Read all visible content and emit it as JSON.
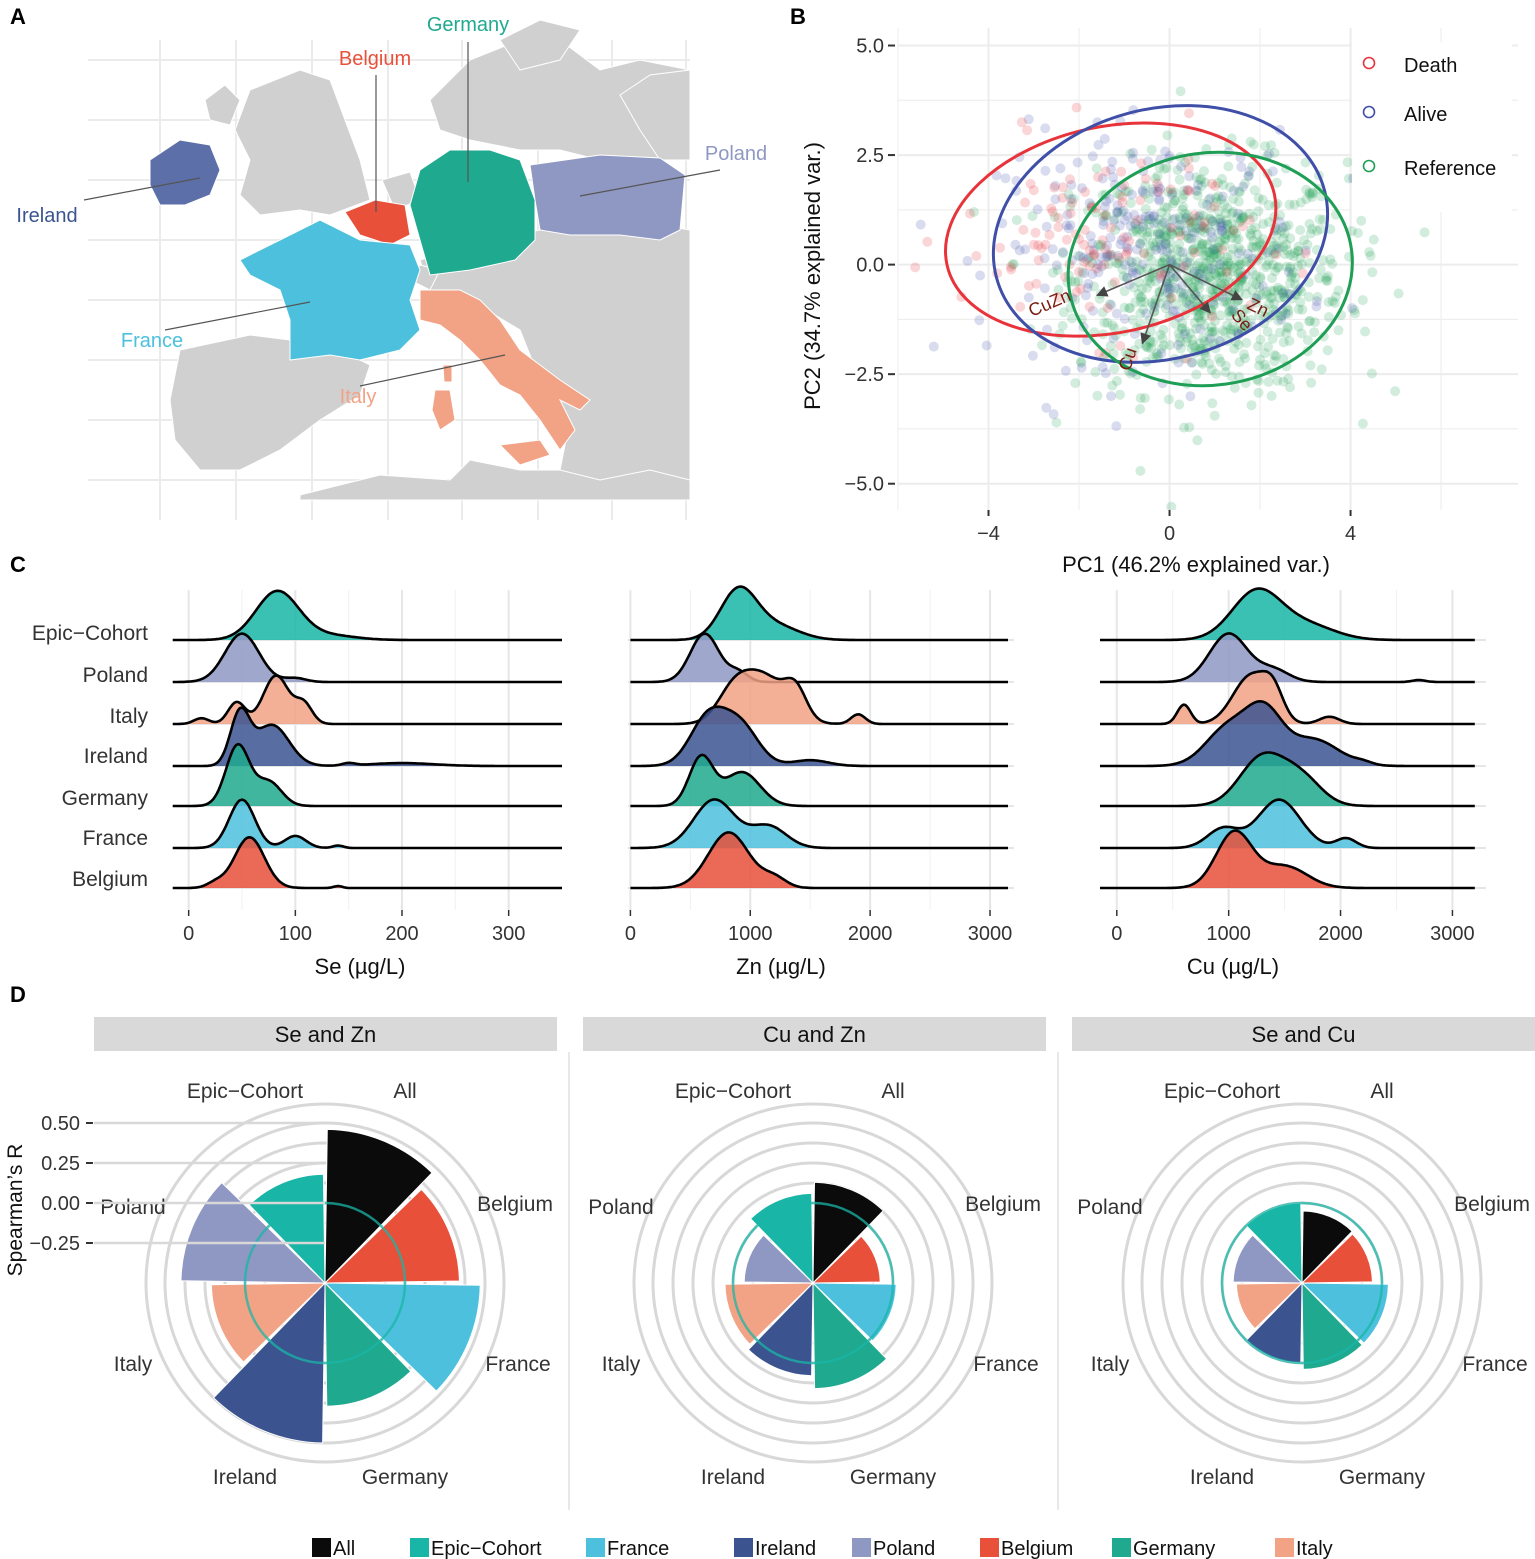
{
  "colors": {
    "All": "#0b0b0b",
    "Epic-Cohort": "#19b5a7",
    "France": "#4cc0dd",
    "Ireland": "#3b5490",
    "Poland": "#8f98c3",
    "Belgium": "#e8503a",
    "Germany": "#1fa98e",
    "Italy": "#f2a285",
    "Death": "#e8333b",
    "Alive": "#3f4fa8",
    "Reference": "#1f9e55",
    "arrow": "#7a1d12",
    "map_land": "#d0d0d0"
  },
  "panel_labels": [
    "A",
    "B",
    "C",
    "D"
  ],
  "map": {
    "labels": [
      "Germany",
      "Belgium",
      "Poland",
      "Ireland",
      "France",
      "Italy"
    ],
    "icon": "europe-map-icon"
  },
  "chart_data": [
    {
      "id": "pca",
      "type": "scatter",
      "xlabel": "PC1 (46.2% explained var.)",
      "ylabel": "PC2 (34.7% explained var.)",
      "xlim": [
        -6,
        7.7
      ],
      "ylim": [
        -5.6,
        5.4
      ],
      "xticks": [
        -4,
        0,
        4
      ],
      "xtick_labels": [
        "−4",
        "0",
        "4"
      ],
      "yticks": [
        5,
        2.5,
        0,
        -2.5,
        -5
      ],
      "ytick_labels": [
        "5.0",
        "2.5",
        "0.0",
        "−2.5",
        "−5.0"
      ],
      "legend": {
        "position": "top-right",
        "items": [
          "Death",
          "Alive",
          "Reference"
        ]
      },
      "ellipses": [
        {
          "group": "Death",
          "center": [
            -1.3,
            0.8
          ],
          "rx": 3.7,
          "ry": 2.35,
          "rotate_deg": -12
        },
        {
          "group": "Alive",
          "center": [
            -0.2,
            0.7
          ],
          "rx": 3.75,
          "ry": 2.85,
          "rotate_deg": -15
        },
        {
          "group": "Reference",
          "center": [
            0.9,
            -0.1
          ],
          "rx": 3.15,
          "ry": 2.65,
          "rotate_deg": -8
        }
      ],
      "loadings": [
        {
          "name": "CuZn",
          "x": -1.6,
          "y": -0.7,
          "label_x": -2.6,
          "label_y": -1.0
        },
        {
          "name": "Cu",
          "x": -0.6,
          "y": -1.8,
          "label_x": -0.8,
          "label_y": -2.2
        },
        {
          "name": "Zn",
          "x": 1.6,
          "y": -0.8,
          "label_x": 1.9,
          "label_y": -1.1
        },
        {
          "name": "Se",
          "x": 0.9,
          "y": -1.1,
          "label_x": 1.5,
          "label_y": -1.35
        }
      ],
      "series": [
        {
          "name": "Death",
          "n": 120,
          "mean": [
            -1.4,
            0.6
          ],
          "sd": [
            1.6,
            1.1
          ]
        },
        {
          "name": "Alive",
          "n": 260,
          "mean": [
            -0.4,
            0.4
          ],
          "sd": [
            1.7,
            1.3
          ]
        },
        {
          "name": "Reference",
          "n": 900,
          "mean": [
            0.9,
            -0.3
          ],
          "sd": [
            1.5,
            1.3
          ]
        }
      ]
    },
    {
      "id": "ridges",
      "type": "area",
      "row_labels": [
        "Epic−Cohort",
        "Poland",
        "Italy",
        "Ireland",
        "Germany",
        "France",
        "Belgium"
      ],
      "row_keys": [
        "Epic-Cohort",
        "Poland",
        "Italy",
        "Ireland",
        "Germany",
        "France",
        "Belgium"
      ],
      "panels": [
        {
          "xlabel": "Se (µg/L)",
          "xlim": [
            -10,
            350
          ],
          "xticks": [
            0,
            100,
            200,
            300
          ],
          "tick_labels": [
            "0",
            "100",
            "200",
            "300"
          ],
          "range": [
            -15,
            350
          ],
          "curves": [
            {
              "peaks": [
                [
                  83,
                  20,
                  1.0
                ],
                [
                  130,
                  25,
                  0.1
                ]
              ]
            },
            {
              "peaks": [
                [
                  50,
                  16,
                  1.0
                ],
                [
                  100,
                  10,
                  0.08
                ]
              ]
            },
            {
              "peaks": [
                [
                  82,
                  12,
                  1.0
                ],
                [
                  45,
                  8,
                  0.45
                ],
                [
                  12,
                  7,
                  0.12
                ],
                [
                  108,
                  8,
                  0.4
                ]
              ]
            },
            {
              "peaks": [
                [
                  48,
                  9,
                  1.05
                ],
                [
                  78,
                  16,
                  0.85
                ],
                [
                  150,
                  6,
                  0.05
                ],
                [
                  200,
                  30,
                  0.06
                ]
              ]
            },
            {
              "peaks": [
                [
                  46,
                  11,
                  1.25
                ],
                [
                  75,
                  12,
                  0.5
                ]
              ]
            },
            {
              "peaks": [
                [
                  50,
                  12,
                  1.0
                ],
                [
                  100,
                  10,
                  0.25
                ],
                [
                  140,
                  5,
                  0.05
                ]
              ]
            },
            {
              "peaks": [
                [
                  57,
                  14,
                  1.05
                ],
                [
                  25,
                  8,
                  0.1
                ],
                [
                  140,
                  4,
                  0.04
                ]
              ]
            }
          ]
        },
        {
          "xlabel": "Zn (µg/L)",
          "xlim": [
            -20,
            3200
          ],
          "xticks": [
            0,
            1000,
            2000,
            3000
          ],
          "tick_labels": [
            "0",
            "1000",
            "2000",
            "3000"
          ],
          "range": [
            0,
            3150
          ],
          "curves": [
            {
              "peaks": [
                [
                  900,
                  150,
                  1.0
                ],
                [
                  1200,
                  200,
                  0.3
                ]
              ]
            },
            {
              "peaks": [
                [
                  620,
                  120,
                  1.0
                ],
                [
                  900,
                  80,
                  0.2
                ]
              ]
            },
            {
              "peaks": [
                [
                  1100,
                  190,
                  1.0
                ],
                [
                  1380,
                  90,
                  0.55
                ],
                [
                  850,
                  130,
                  0.5
                ],
                [
                  1900,
                  60,
                  0.2
                ]
              ]
            },
            {
              "peaks": [
                [
                  650,
                  150,
                  1.0
                ],
                [
                  920,
                  150,
                  0.8
                ],
                [
                  1500,
                  150,
                  0.12
                ]
              ]
            },
            {
              "peaks": [
                [
                  590,
                  100,
                  1.0
                ],
                [
                  930,
                  150,
                  0.7
                ]
              ]
            },
            {
              "peaks": [
                [
                  700,
                  170,
                  1.0
                ],
                [
                  1150,
                  150,
                  0.45
                ]
              ]
            },
            {
              "peaks": [
                [
                  820,
                  170,
                  1.15
                ],
                [
                  1200,
                  100,
                  0.2
                ]
              ]
            }
          ]
        },
        {
          "xlabel": "Cu (µg/L)",
          "xlim": [
            -150,
            3300
          ],
          "xticks": [
            0,
            1000,
            2000,
            3000
          ],
          "tick_labels": [
            "0",
            "1000",
            "2000",
            "3000"
          ],
          "range": [
            -150,
            3200
          ],
          "curves": [
            {
              "peaks": [
                [
                  1250,
                  220,
                  1.0
                ],
                [
                  1700,
                  250,
                  0.3
                ]
              ]
            },
            {
              "peaks": [
                [
                  1000,
                  170,
                  1.0
                ],
                [
                  1400,
                  140,
                  0.25
                ],
                [
                  2700,
                  60,
                  0.04
                ]
              ]
            },
            {
              "peaks": [
                [
                  1200,
                  160,
                  1.0
                ],
                [
                  600,
                  60,
                  0.4
                ],
                [
                  1400,
                  90,
                  0.5
                ],
                [
                  1900,
                  90,
                  0.15
                ]
              ]
            },
            {
              "peaks": [
                [
                  1000,
                  200,
                  0.8
                ],
                [
                  1320,
                  160,
                  1.0
                ],
                [
                  1750,
                  230,
                  0.55
                ],
                [
                  2200,
                  80,
                  0.05
                ]
              ]
            },
            {
              "peaks": [
                [
                  1300,
                  200,
                  1.0
                ],
                [
                  1650,
                  180,
                  0.55
                ]
              ]
            },
            {
              "peaks": [
                [
                  1450,
                  190,
                  1.0
                ],
                [
                  950,
                  140,
                  0.4
                ],
                [
                  2050,
                  90,
                  0.2
                ]
              ]
            },
            {
              "peaks": [
                [
                  1050,
                  160,
                  1.15
                ],
                [
                  1500,
                  200,
                  0.45
                ]
              ]
            }
          ]
        }
      ]
    },
    {
      "id": "polar",
      "type": "bar",
      "ylabel": "Spearman’s R",
      "ylim": [
        -0.25,
        0.5
      ],
      "yticks": [
        0.5,
        0.25,
        0.0,
        -0.25
      ],
      "ytick_labels": [
        "0.50",
        "0.25",
        "0.00",
        "−0.25"
      ],
      "categories": [
        "All",
        "Belgium",
        "France",
        "Germany",
        "Ireland",
        "Italy",
        "Poland",
        "Epic−Cohort"
      ],
      "category_keys": [
        "All",
        "Belgium",
        "France",
        "Germany",
        "Ireland",
        "Italy",
        "Poland",
        "Epic-Cohort"
      ],
      "reference_ring": 0.0,
      "panels": [
        {
          "title": "Se and Zn",
          "values": [
            0.46,
            0.34,
            0.47,
            0.27,
            0.5,
            0.21,
            0.4,
            0.18
          ]
        },
        {
          "title": "Cu and Zn",
          "values": [
            0.13,
            -0.08,
            0.02,
            0.16,
            0.08,
            0.05,
            -0.07,
            0.06
          ]
        },
        {
          "title": "Se and Cu",
          "values": [
            -0.05,
            -0.06,
            0.04,
            0.04,
            0.0,
            -0.09,
            -0.07,
            0.0
          ]
        }
      ],
      "legend": {
        "position": "bottom",
        "items": [
          "All",
          "Epic−Cohort",
          "France",
          "Ireland",
          "Poland",
          "Belgium",
          "Germany",
          "Italy"
        ],
        "keys": [
          "All",
          "Epic-Cohort",
          "France",
          "Ireland",
          "Poland",
          "Belgium",
          "Germany",
          "Italy"
        ]
      }
    }
  ]
}
